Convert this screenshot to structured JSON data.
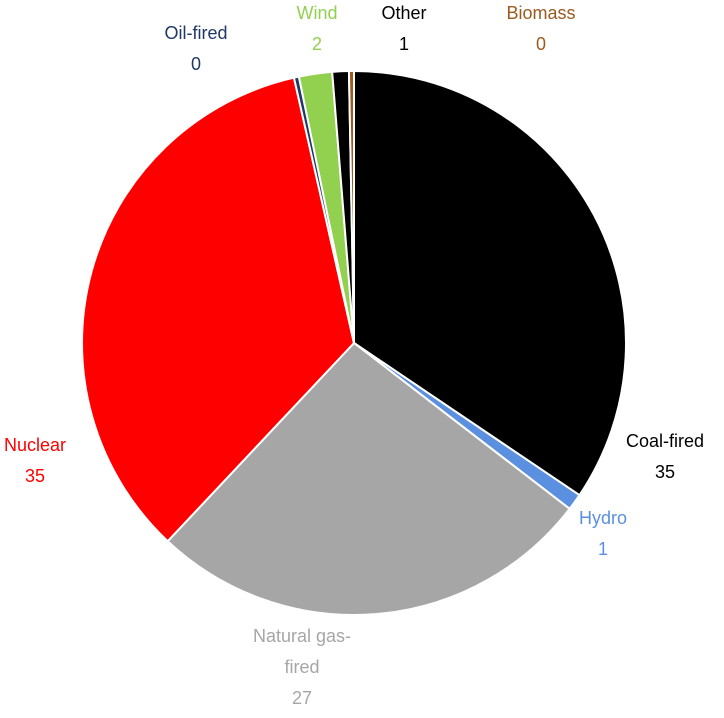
{
  "chart_data": {
    "type": "pie",
    "title": "",
    "slices": [
      {
        "label": "Coal-fired",
        "value": 35,
        "color": "#000000"
      },
      {
        "label": "Hydro",
        "value": 1,
        "color": "#5b8fe0"
      },
      {
        "label": "Natural gas-fired",
        "value": 27,
        "color": "#a6a6a6"
      },
      {
        "label": "Nuclear",
        "value": 35,
        "color": "#ff0000"
      },
      {
        "label": "Oil-fired",
        "value": 0,
        "color": "#1f3864"
      },
      {
        "label": "Wind",
        "value": 2,
        "color": "#92d050"
      },
      {
        "label": "Other",
        "value": 1,
        "color": "#000000"
      },
      {
        "label": "Biomass",
        "value": 0,
        "color": "#9c5a1f"
      }
    ],
    "start": "12 o'clock",
    "direction": "clockwise"
  }
}
